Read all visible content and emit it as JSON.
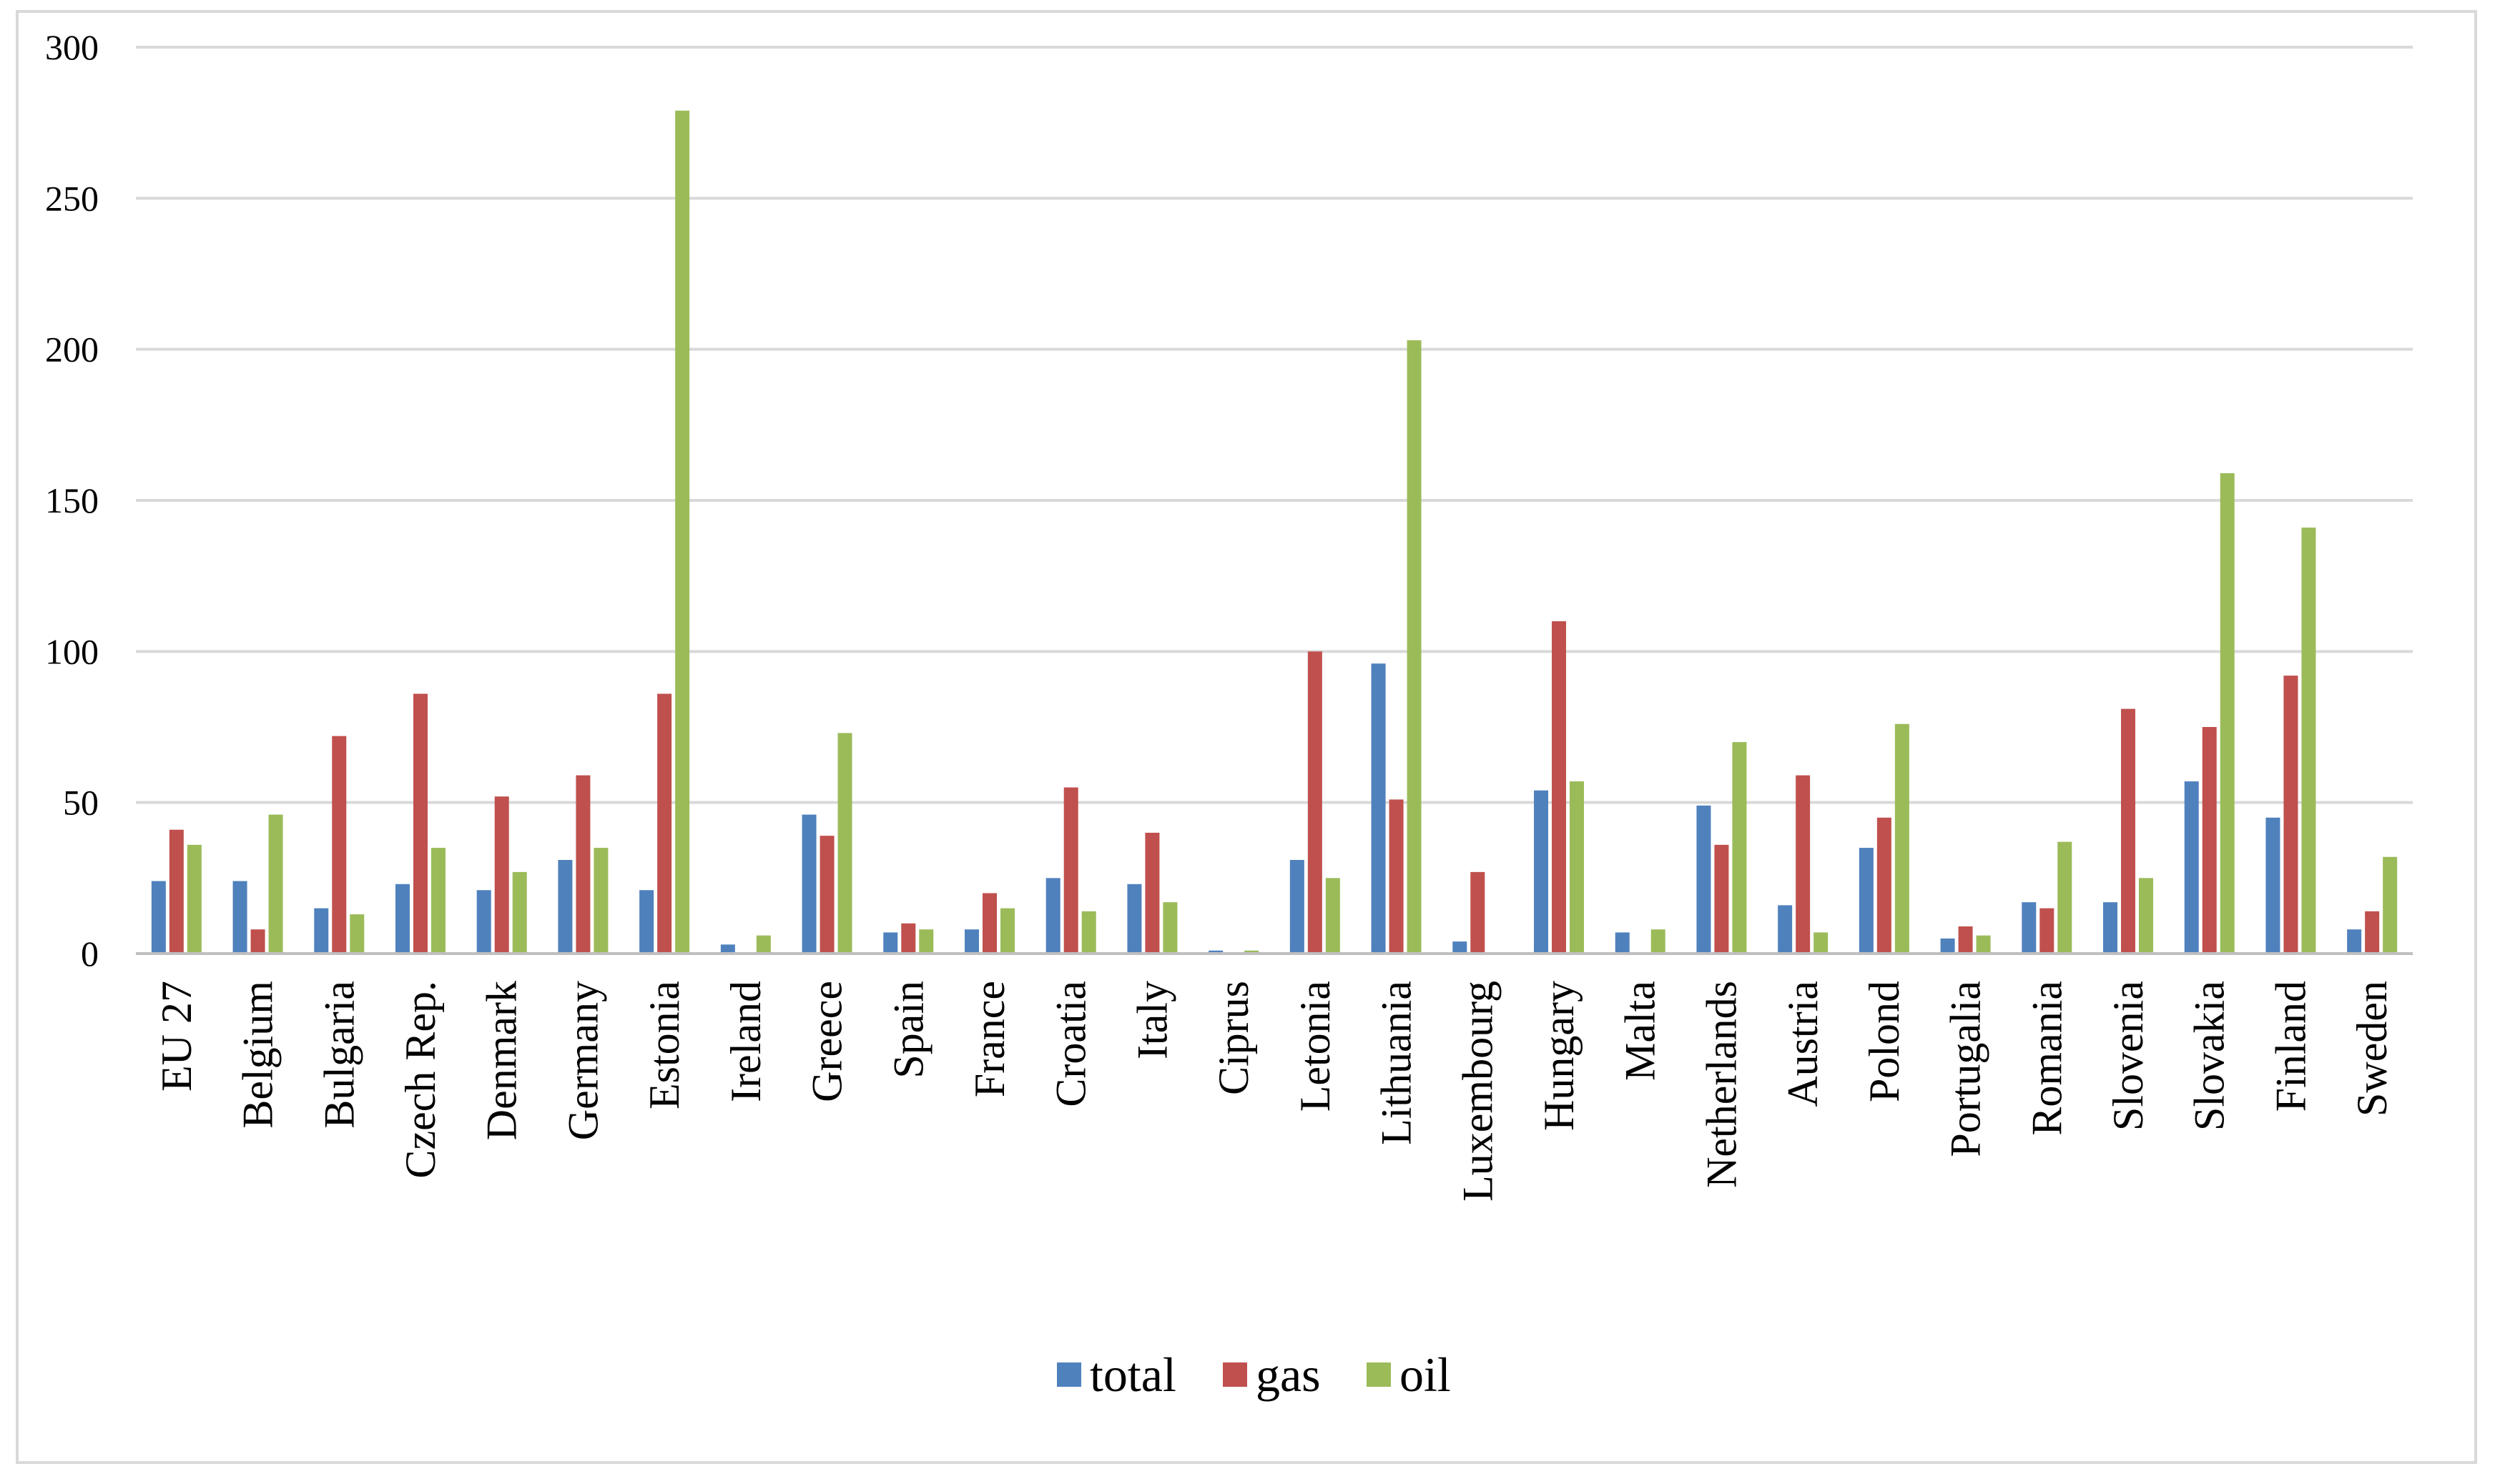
{
  "chart_data": {
    "type": "bar",
    "title": "",
    "xlabel": "",
    "ylabel": "",
    "ylim": [
      0,
      300
    ],
    "yticks": [
      0,
      50,
      100,
      150,
      200,
      250,
      300
    ],
    "grid": true,
    "legend_position": "bottom",
    "categories": [
      "EU 27",
      "Belgium",
      "Bulgaria",
      "Czech Rep.",
      "Denmark",
      "Germany",
      "Estonia",
      "Ireland",
      "Greece",
      "Spain",
      "France",
      "Croatia",
      "Italy",
      "Ciprus",
      "Letonia",
      "Lithuania",
      "Luxembourg",
      "Hungary",
      "Malta",
      "Netherlands",
      "Austria",
      "Polond",
      "Portugalia",
      "Romania",
      "Slovenia",
      "Slovakia",
      "Finland",
      "Sweden"
    ],
    "series": [
      {
        "name": "total",
        "color": "#4f81bd",
        "values": [
          24,
          24,
          15,
          23,
          21,
          31,
          21,
          3,
          46,
          7,
          8,
          25,
          23,
          1,
          31,
          96,
          4,
          54,
          7,
          49,
          16,
          35,
          5,
          17,
          17,
          57,
          45,
          8
        ]
      },
      {
        "name": "gas",
        "color": "#c0504d",
        "values": [
          41,
          8,
          72,
          86,
          52,
          59,
          86,
          0,
          39,
          10,
          20,
          55,
          40,
          0,
          100,
          51,
          27,
          110,
          0,
          36,
          59,
          45,
          9,
          15,
          81,
          75,
          92,
          14
        ]
      },
      {
        "name": "oil",
        "color": "#9bbb59",
        "values": [
          36,
          46,
          13,
          35,
          27,
          35,
          279,
          6,
          73,
          8,
          15,
          14,
          17,
          1,
          25,
          203,
          0,
          57,
          8,
          70,
          7,
          76,
          6,
          37,
          25,
          159,
          141,
          32
        ]
      }
    ]
  }
}
